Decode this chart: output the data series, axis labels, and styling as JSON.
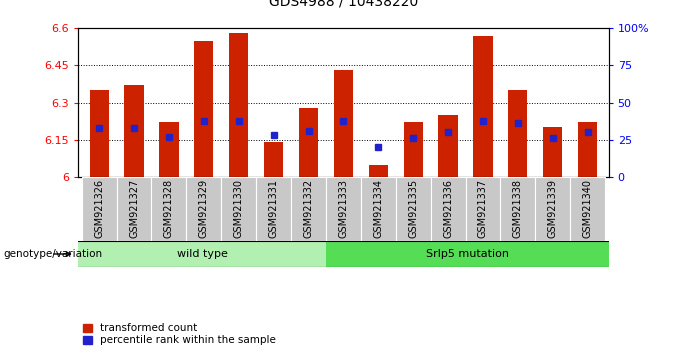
{
  "title": "GDS4988 / 10438220",
  "samples": [
    "GSM921326",
    "GSM921327",
    "GSM921328",
    "GSM921329",
    "GSM921330",
    "GSM921331",
    "GSM921332",
    "GSM921333",
    "GSM921334",
    "GSM921335",
    "GSM921336",
    "GSM921337",
    "GSM921338",
    "GSM921339",
    "GSM921340"
  ],
  "transformed_counts": [
    6.35,
    6.37,
    6.22,
    6.55,
    6.58,
    6.14,
    6.28,
    6.43,
    6.05,
    6.22,
    6.25,
    6.57,
    6.35,
    6.2,
    6.22
  ],
  "percentile_ranks": [
    33,
    33,
    27,
    38,
    38,
    28,
    31,
    38,
    20,
    26,
    30,
    38,
    36,
    26,
    30
  ],
  "ylim_left": [
    6.0,
    6.6
  ],
  "ylim_right": [
    0,
    100
  ],
  "yticks_left": [
    6.0,
    6.15,
    6.3,
    6.45,
    6.6
  ],
  "ytick_labels_left": [
    "6",
    "6.15",
    "6.3",
    "6.45",
    "6.6"
  ],
  "yticks_right": [
    0,
    25,
    50,
    75,
    100
  ],
  "ytick_labels_right": [
    "0",
    "25",
    "50",
    "75",
    "100%"
  ],
  "groups": [
    {
      "label": "wild type",
      "start": 0,
      "end": 7,
      "color": "#b2f0b2"
    },
    {
      "label": "Srlp5 mutation",
      "start": 7,
      "end": 15,
      "color": "#55dd55"
    }
  ],
  "bar_color": "#CC2200",
  "dot_color": "#2222CC",
  "bar_width": 0.55,
  "genotype_label": "genotype/variation",
  "legend_items": [
    {
      "label": "transformed count",
      "color": "#CC2200",
      "marker": "s"
    },
    {
      "label": "percentile rank within the sample",
      "color": "#2222CC",
      "marker": "s"
    }
  ],
  "grid_lines": [
    6.15,
    6.3,
    6.45
  ],
  "title_fontsize": 10,
  "axis_fontsize": 8,
  "tick_label_fontsize": 7
}
